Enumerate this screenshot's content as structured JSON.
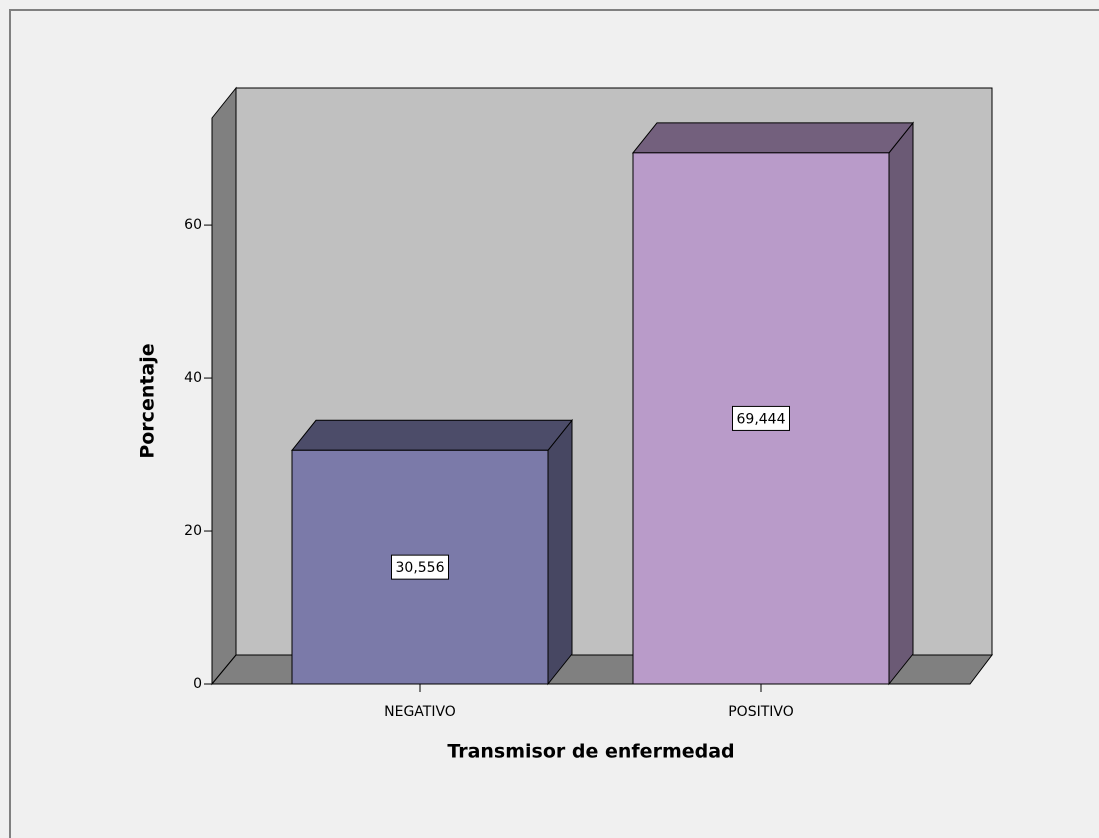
{
  "chart_data": {
    "type": "bar",
    "categories": [
      "NEGATIVO",
      "POSITIVO"
    ],
    "values": [
      30.556,
      69.444
    ],
    "value_labels": [
      "30,556",
      "69,444"
    ],
    "colors": [
      "#7b7aa9",
      "#b99bc9"
    ],
    "x_label": "Transmisor de enfermedad",
    "y_label": "Porcentaje",
    "ylim": [
      0,
      74
    ],
    "yticks": [
      0,
      20,
      40,
      60
    ]
  }
}
